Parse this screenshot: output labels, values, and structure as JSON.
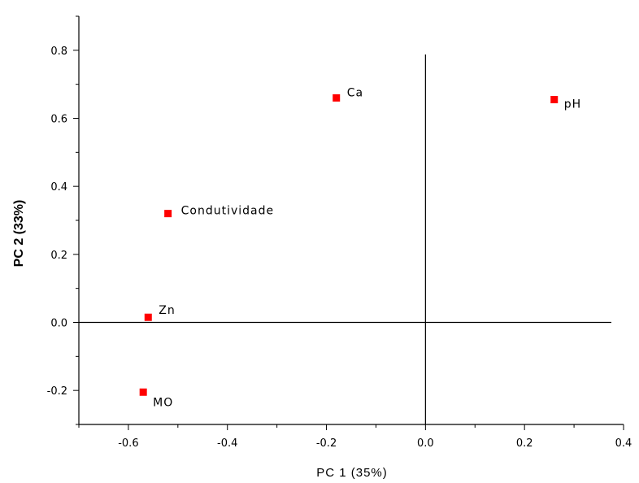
{
  "chart_data": {
    "type": "scatter",
    "title": "",
    "xlabel": "PC 1 (35%)",
    "ylabel": "PC 2 (33%)",
    "xlim": [
      -0.7,
      0.4
    ],
    "ylim": [
      -0.3,
      0.9
    ],
    "x_ticks": [
      -0.6,
      -0.4,
      -0.2,
      0.0,
      0.2,
      0.4
    ],
    "x_tick_labels": [
      "-0.6",
      "-0.4",
      "-0.2",
      "0.0",
      "0.2",
      "0.4"
    ],
    "y_ticks": [
      -0.2,
      0.0,
      0.2,
      0.4,
      0.6,
      0.8
    ],
    "y_tick_labels": [
      "-0.2",
      "0.0",
      "0.2",
      "0.4",
      "0.6",
      "0.8"
    ],
    "grid": false,
    "legend": "none",
    "reference_lines": {
      "x": 0.0,
      "y": 0.0
    },
    "marker_color": "#ff0000",
    "points": [
      {
        "label": "Ca",
        "x": -0.18,
        "y": 0.66
      },
      {
        "label": "pH",
        "x": 0.26,
        "y": 0.655
      },
      {
        "label": "Condutividade",
        "x": -0.52,
        "y": 0.32
      },
      {
        "label": "Zn",
        "x": -0.56,
        "y": 0.015
      },
      {
        "label": "MO",
        "x": -0.57,
        "y": -0.205
      }
    ]
  }
}
